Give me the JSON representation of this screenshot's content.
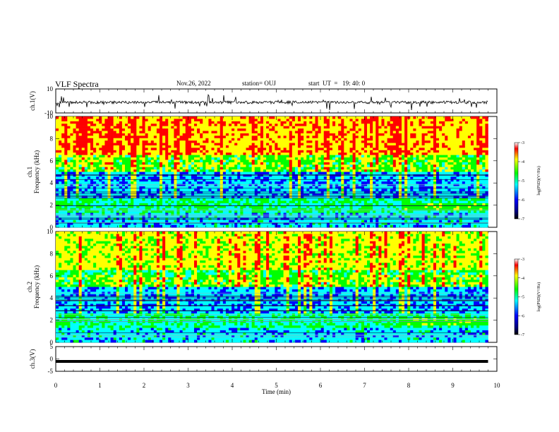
{
  "header": {
    "title": "VLF Spectra",
    "date": "Nov.26, 2022",
    "station": "station= OUJ",
    "start": "start  UT  =   19: 40: 0"
  },
  "chart_data": [
    {
      "type": "line",
      "name": "ch1-waveform",
      "ylabel": "ch.1(V)",
      "ylim": [
        -10,
        10
      ],
      "yticks": [
        "10",
        "-10"
      ],
      "xlim": [
        0,
        10
      ]
    },
    {
      "type": "heatmap",
      "name": "ch1-spectrogram",
      "ylabel": "ch.1 Frequency (kHz)",
      "ylim": [
        0,
        10
      ],
      "yticks": [
        "0",
        "2",
        "4",
        "6",
        "8",
        "10"
      ],
      "xlim": [
        0,
        10
      ],
      "colorbar": {
        "label": "log(PSD)(V²/Hz)",
        "ticks": [
          "-3",
          "-4",
          "-5",
          "-6",
          "-7"
        ],
        "range": [
          -7,
          -3
        ]
      },
      "data_extent_min": 9.8
    },
    {
      "type": "heatmap",
      "name": "ch2-spectrogram",
      "ylabel": "ch.2 Frequency (kHz)",
      "ylim": [
        0,
        10
      ],
      "yticks": [
        "0",
        "2",
        "4",
        "6",
        "8",
        "10"
      ],
      "xlim": [
        0,
        10
      ],
      "colorbar": {
        "label": "log(PSD)(V²/Hz)",
        "ticks": [
          "-3",
          "-4",
          "-5",
          "-6",
          "-7"
        ],
        "range": [
          -7,
          -3
        ]
      },
      "data_extent_min": 9.8
    },
    {
      "type": "line",
      "name": "ch3-waveform",
      "ylabel": "ch.3(V)",
      "ylim": [
        -5,
        5
      ],
      "yticks": [
        "5",
        "0",
        "-5"
      ],
      "xlim": [
        0,
        10
      ],
      "level": -1
    }
  ],
  "xaxis": {
    "label": "Time  (min)",
    "ticks": [
      "0",
      "1",
      "2",
      "3",
      "4",
      "5",
      "6",
      "7",
      "8",
      "9",
      "10"
    ]
  },
  "colors": {
    "cmap": [
      "#000080",
      "#0000ff",
      "#00ffff",
      "#00ff00",
      "#ffff00",
      "#ff0000"
    ]
  }
}
